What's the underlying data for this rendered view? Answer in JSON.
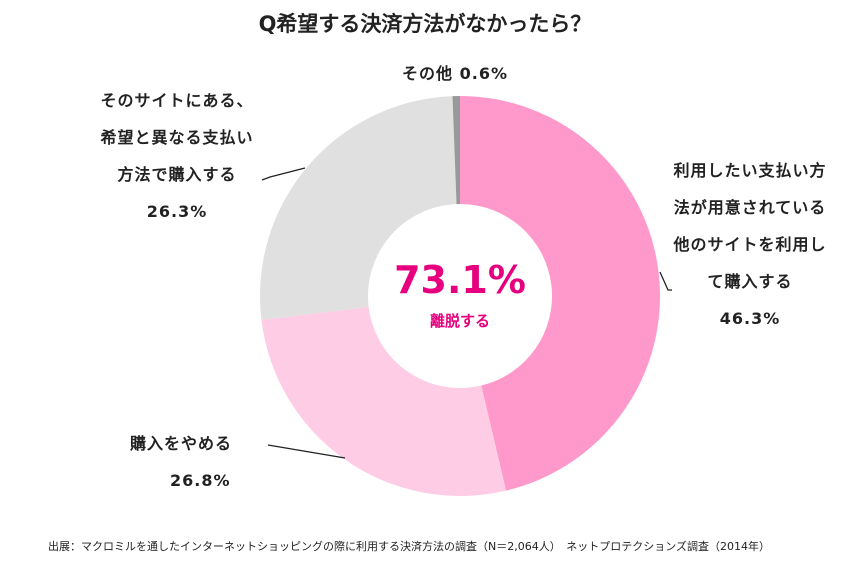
{
  "chart_data": {
    "type": "donut",
    "title": "Q希望する決済方法がなかったら？",
    "categories": [
      "利用したい支払い方法が用意されている他のサイトを利用して購入する",
      "購入をやめる",
      "そのサイトにある、希望と異なる支払い方法で購入する",
      "その他"
    ],
    "values": [
      46.3,
      26.8,
      26.3,
      0.6
    ],
    "value_labels": [
      "46.3%",
      "26.8%",
      "26.3%",
      "0.6%"
    ],
    "colors": [
      "#ff99cc",
      "#ffcce6",
      "#e0e0e0",
      "#999999"
    ],
    "center_value": 73.1,
    "center_value_label": "73.1%",
    "center_label": "離脱する",
    "source": "出展：マクロミルを通したインターネットショッピングの際に利用する決済方法の調査（N＝2,064人）　ネットプロテクションズ調査（2014年）"
  }
}
